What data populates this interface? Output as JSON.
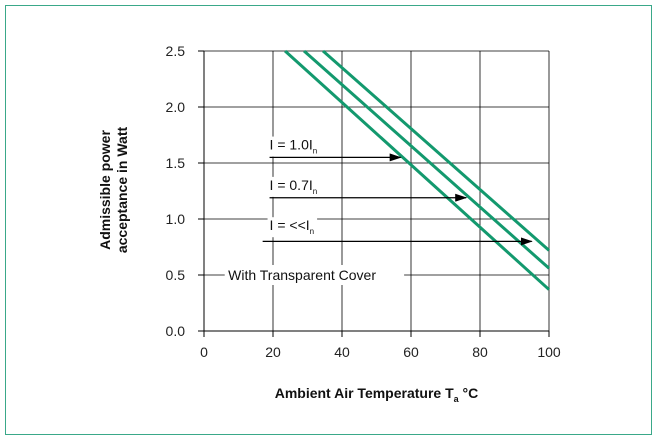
{
  "chart_data": {
    "type": "line",
    "xlabel": {
      "main": "Ambient Air Temperature T",
      "sub": "a",
      "unit": " °C"
    },
    "ylabel": [
      "Admissible power",
      "acceptance in Watt"
    ],
    "xlim": [
      0,
      100
    ],
    "ylim": [
      0.0,
      2.5
    ],
    "x_ticks": [
      "0",
      "20",
      "40",
      "60",
      "80",
      "100"
    ],
    "y_ticks": [
      "0.0",
      "0.5",
      "1.0",
      "1.5",
      "2.0",
      "2.5"
    ],
    "grid": true,
    "line_color": "#13996e",
    "series": [
      {
        "x": [
          23.5,
          100
        ],
        "y": [
          2.5,
          0.37
        ]
      },
      {
        "x": [
          29,
          100
        ],
        "y": [
          2.5,
          0.56
        ]
      },
      {
        "x": [
          34.5,
          100
        ],
        "y": [
          2.5,
          0.72
        ]
      }
    ],
    "annotations": [
      {
        "prefix": "I = 1.0I",
        "sub": "n",
        "x": 19,
        "y": 1.62,
        "arrow_from": [
          19,
          1.55
        ],
        "arrow_to": [
          57,
          1.55
        ]
      },
      {
        "prefix": "I = 0.7I",
        "sub": "n",
        "x": 19,
        "y": 1.26,
        "arrow_from": [
          19,
          1.19
        ],
        "arrow_to": [
          76,
          1.19
        ]
      },
      {
        "prefix": "I = <<I",
        "sub": "n",
        "x": 19,
        "y": 0.9,
        "arrow_from": [
          17,
          0.8
        ],
        "arrow_to": [
          95,
          0.8
        ]
      }
    ],
    "note": "With Transparent Cover"
  }
}
